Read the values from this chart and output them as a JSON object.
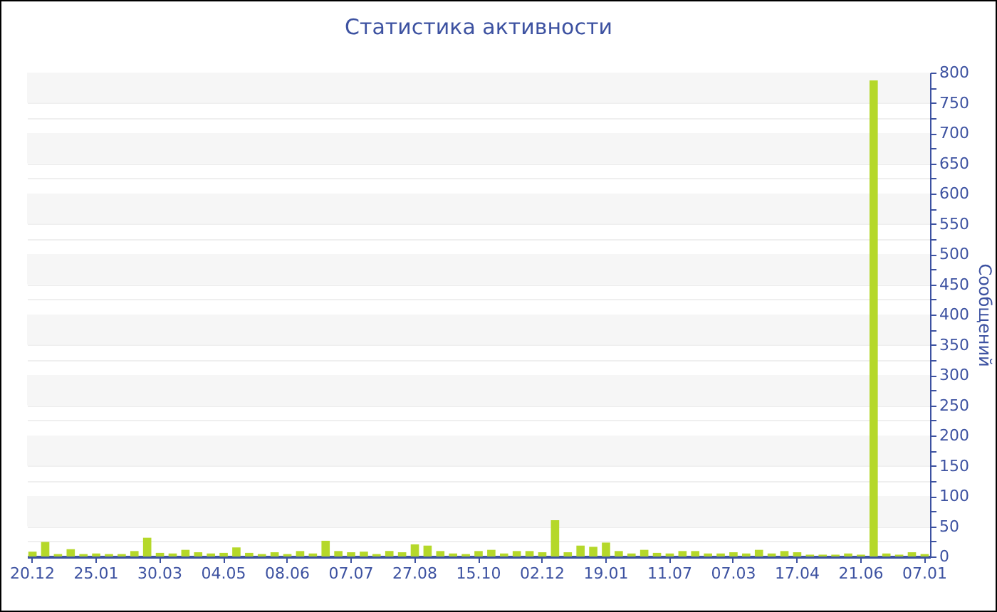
{
  "chart_data": {
    "type": "bar",
    "title": "Статистика активности",
    "ylabel": "Сообщений",
    "categories": [
      "20.12",
      null,
      null,
      null,
      null,
      "25.01",
      null,
      null,
      null,
      null,
      "30.03",
      null,
      null,
      null,
      null,
      "04.05",
      null,
      null,
      null,
      null,
      "08.06",
      null,
      null,
      null,
      null,
      "07.07",
      null,
      null,
      null,
      null,
      "27.08",
      null,
      null,
      null,
      null,
      "15.10",
      null,
      null,
      null,
      null,
      "02.12",
      null,
      null,
      null,
      null,
      "19.01",
      null,
      null,
      null,
      null,
      "11.07",
      null,
      null,
      null,
      null,
      "07.03",
      null,
      null,
      null,
      null,
      "17.04",
      null,
      null,
      null,
      null,
      "21.06",
      null,
      null,
      null,
      null,
      "07.01"
    ],
    "values": [
      8,
      24,
      4,
      12,
      4,
      5,
      4,
      4,
      9,
      31,
      6,
      5,
      11,
      7,
      5,
      6,
      15,
      6,
      4,
      7,
      4,
      9,
      5,
      26,
      9,
      7,
      8,
      4,
      9,
      7,
      20,
      18,
      9,
      5,
      4,
      9,
      11,
      5,
      9,
      9,
      7,
      60,
      7,
      18,
      16,
      23,
      9,
      5,
      11,
      6,
      5,
      9,
      9,
      5,
      5,
      7,
      5,
      11,
      5,
      9,
      7,
      3,
      3,
      3,
      5,
      3,
      787,
      5,
      3,
      7,
      4
    ],
    "color": "#b5d82a",
    "ylim": [
      0,
      800
    ],
    "yticks": [
      0,
      {
        "value": 25,
        "label": null
      },
      50,
      {
        "value": 75,
        "label": null
      },
      100,
      {
        "value": 125,
        "label": null
      },
      150,
      {
        "value": 175,
        "label": null
      },
      200,
      {
        "value": 225,
        "label": null
      },
      250,
      {
        "value": 275,
        "label": null
      },
      300,
      {
        "value": 325,
        "label": null
      },
      350,
      {
        "value": 375,
        "label": null
      },
      400,
      {
        "value": 425,
        "label": null
      },
      450,
      {
        "value": 475,
        "label": null
      },
      500,
      {
        "value": 525,
        "label": null
      },
      550,
      {
        "value": 575,
        "label": null
      },
      600,
      {
        "value": 625,
        "label": null
      },
      650,
      {
        "value": 675,
        "label": null
      },
      700,
      {
        "value": 725,
        "label": null
      },
      750,
      {
        "value": 775,
        "label": null
      },
      800
    ],
    "grid": "y"
  }
}
